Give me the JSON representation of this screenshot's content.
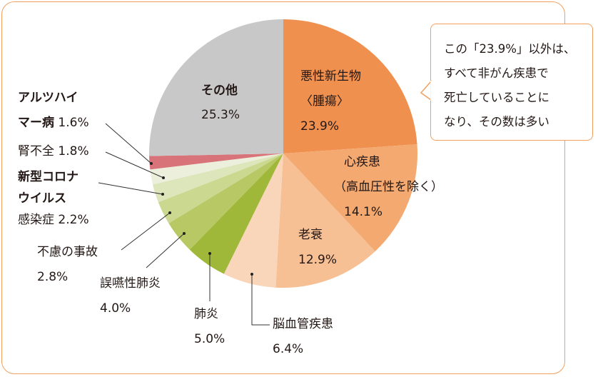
{
  "chart_data": {
    "type": "pie",
    "start": "top",
    "direction": "clockwise",
    "slices": [
      {
        "label": [
          "悪性新生物",
          "〈腫瘍〉"
        ],
        "value": 23.9,
        "value_label": "23.9%",
        "color": "#f0904f"
      },
      {
        "label": [
          "心疾患",
          "（高血圧性を除く）"
        ],
        "value": 14.1,
        "value_label": "14.1%",
        "color": "#f3a96f"
      },
      {
        "label": [
          "老衰"
        ],
        "value": 12.9,
        "value_label": "12.9%",
        "color": "#f6bf94"
      },
      {
        "label": [
          "脳血管疾患"
        ],
        "value": 6.4,
        "value_label": "6.4%",
        "color": "#f9d5b9"
      },
      {
        "label": [
          "肺炎"
        ],
        "value": 5.0,
        "value_label": "5.0%",
        "color": "#a0b83a"
      },
      {
        "label": [
          "誤嚥性肺炎"
        ],
        "value": 4.0,
        "value_label": "4.0%",
        "color": "#b8c865"
      },
      {
        "label": [
          "不慮の事故"
        ],
        "value": 2.8,
        "value_label": "2.8%",
        "color": "#cbd890"
      },
      {
        "label": [
          "新型コロナ",
          "ウイルス",
          "感染症"
        ],
        "value": 2.2,
        "value_label": "2.2%",
        "color": "#dde5bb"
      },
      {
        "label": [
          "腎不全"
        ],
        "value": 1.8,
        "value_label": "1.8%",
        "color": "#ecefdb"
      },
      {
        "label": [
          "アルツハイ",
          "マー病"
        ],
        "value": 1.6,
        "value_label": "1.6%",
        "color": "#d8737a"
      },
      {
        "label": [
          "その他"
        ],
        "value": 25.3,
        "value_label": "25.3%",
        "color": "#c8c8c8"
      }
    ]
  },
  "callout": {
    "lines": [
      "この「23.9%」以外は、",
      "すべて非がん疾患で",
      "死亡していることに",
      "なり、その数は多い"
    ],
    "border_color": "#f0a060"
  }
}
